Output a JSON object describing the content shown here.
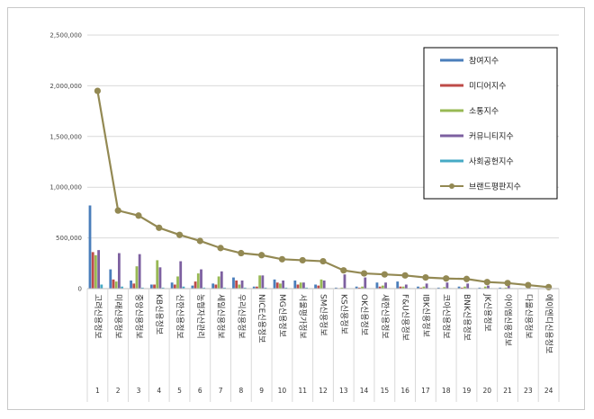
{
  "chart_data": {
    "type": "bar",
    "title": "",
    "xlabel": "",
    "ylabel": "",
    "ylim": [
      0,
      2500000
    ],
    "yticks": [
      "0",
      "500,000",
      "1,000,000",
      "1,500,000",
      "2,000,000",
      "2,500,000"
    ],
    "grid": true,
    "legend_position": "top-right",
    "categories": [
      "고려신용정보",
      "미래신용정보",
      "중앙신용정보",
      "KB신용정보",
      "신한신용정보",
      "농협자산관리",
      "세일신용정보",
      "우리신용정보",
      "NICE신용정보",
      "MG신용정보",
      "서울평가정보",
      "SM신용정보",
      "KS신용정보",
      "OK신용정보",
      "새한신용정보",
      "F&U신용정보",
      "IBK신용정보",
      "코아신용정보",
      "BNK신용정보",
      "JK신용정보",
      "아이엠신용정보",
      "다올신용정보",
      "에이엔디신용정보"
    ],
    "ranks": [
      "1",
      "2",
      "3",
      "4",
      "5",
      "6",
      "7",
      "8",
      "9",
      "10",
      "11",
      "12",
      "13",
      "14",
      "15",
      "16",
      "17",
      "18",
      "19",
      "20",
      "21",
      "23",
      "24"
    ],
    "series": [
      {
        "name": "참여지수",
        "color": "#4a7ebb",
        "values": [
          820000,
          190000,
          80000,
          40000,
          60000,
          30000,
          50000,
          110000,
          20000,
          90000,
          80000,
          40000,
          10000,
          20000,
          60000,
          70000,
          20000,
          10000,
          20000,
          10000,
          10000,
          5000,
          2000
        ]
      },
      {
        "name": "미디어지수",
        "color": "#be4b48",
        "values": [
          360000,
          90000,
          50000,
          40000,
          40000,
          70000,
          40000,
          80000,
          20000,
          60000,
          40000,
          30000,
          5000,
          10000,
          20000,
          20000,
          10000,
          5000,
          10000,
          5000,
          5000,
          3000,
          2000
        ]
      },
      {
        "name": "소통지수",
        "color": "#98b954",
        "values": [
          330000,
          70000,
          220000,
          280000,
          120000,
          150000,
          120000,
          40000,
          130000,
          50000,
          60000,
          90000,
          10000,
          20000,
          30000,
          20000,
          20000,
          15000,
          20000,
          20000,
          10000,
          5000,
          2000
        ]
      },
      {
        "name": "커뮤니티지수",
        "color": "#7d60a0",
        "values": [
          380000,
          350000,
          340000,
          210000,
          270000,
          190000,
          170000,
          80000,
          130000,
          80000,
          60000,
          80000,
          140000,
          110000,
          60000,
          40000,
          50000,
          60000,
          50000,
          30000,
          30000,
          20000,
          10000
        ]
      },
      {
        "name": "사회공헌지수",
        "color": "#46aac5",
        "values": [
          40000,
          20000,
          10000,
          10000,
          20000,
          10000,
          10000,
          10000,
          10000,
          10000,
          10000,
          5000,
          5000,
          5000,
          5000,
          5000,
          5000,
          5000,
          5000,
          5000,
          5000,
          3000,
          2000
        ]
      },
      {
        "name": "브랜드평판지수",
        "color": "#938953",
        "type": "line",
        "values": [
          1950000,
          770000,
          720000,
          600000,
          530000,
          470000,
          400000,
          350000,
          330000,
          290000,
          280000,
          270000,
          180000,
          150000,
          140000,
          130000,
          110000,
          100000,
          95000,
          65000,
          55000,
          35000,
          15000
        ]
      }
    ]
  }
}
